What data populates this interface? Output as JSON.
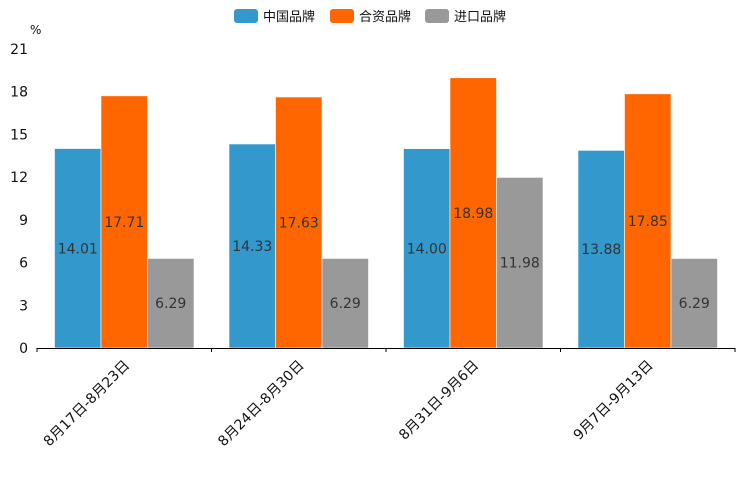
{
  "chart_data": {
    "type": "bar",
    "unit_label": "%",
    "categories": [
      "8月17日-8月23日",
      "8月24日-8月30日",
      "8月31日-9月6日",
      "9月7日-9月13日"
    ],
    "series": [
      {
        "name": "中国品牌",
        "color": "#3399cc",
        "values": [
          14.01,
          14.33,
          14.0,
          13.88
        ],
        "labels": [
          "14.01",
          "14.33",
          "14.00",
          "13.88"
        ]
      },
      {
        "name": "合资品牌",
        "color": "#ff6600",
        "values": [
          17.71,
          17.63,
          18.98,
          17.85
        ],
        "labels": [
          "17.71",
          "17.63",
          "18.98",
          "17.85"
        ]
      },
      {
        "name": "进口品牌",
        "color": "#999999",
        "values": [
          6.29,
          6.29,
          11.98,
          6.29
        ],
        "labels": [
          "6.29",
          "6.29",
          "11.98",
          "6.29"
        ]
      }
    ],
    "yticks": [
      "0",
      "3",
      "6",
      "9",
      "12",
      "15",
      "18",
      "21"
    ],
    "ylim": [
      0,
      21
    ],
    "legend_position": "top-center",
    "grid": false
  }
}
